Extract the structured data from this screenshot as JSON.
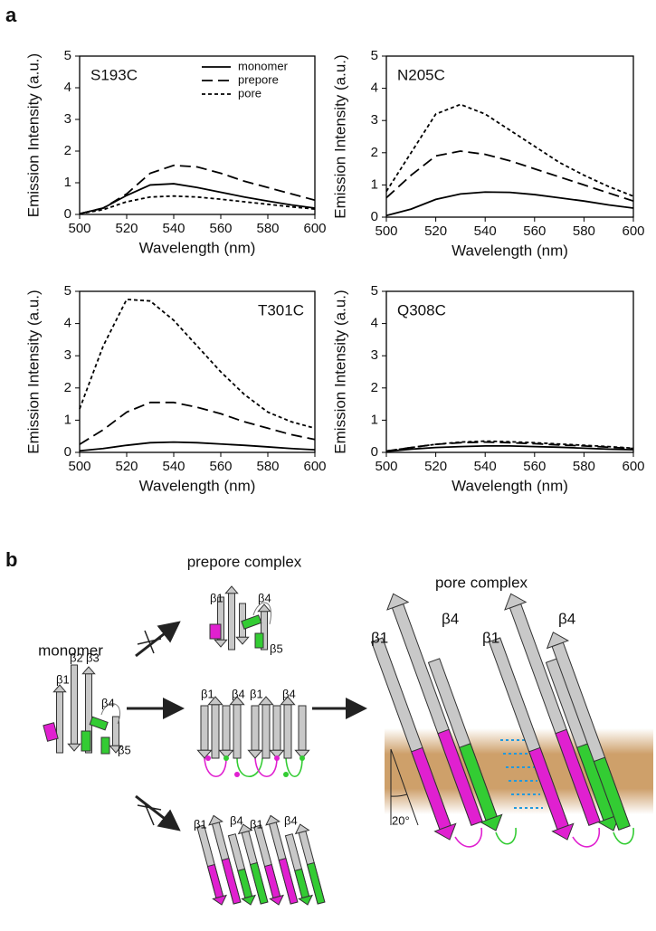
{
  "panel_a": {
    "label": "a"
  },
  "chart_data": [
    {
      "type": "line",
      "title": "S193C",
      "xlabel": "Wavelength (nm)",
      "ylabel": "Emission  Intensity (a.u.)",
      "x": [
        500,
        510,
        520,
        530,
        540,
        550,
        560,
        570,
        580,
        590,
        600
      ],
      "xlim": [
        500,
        600
      ],
      "xticks": [
        500,
        520,
        540,
        560,
        580,
        600
      ],
      "ylim": [
        0,
        5
      ],
      "yticks": [
        0,
        1,
        2,
        3,
        4,
        5
      ],
      "legend": "top-right",
      "series": [
        {
          "name": "monomer",
          "color": "#000000",
          "dash": "solid",
          "values": [
            0.02,
            0.2,
            0.6,
            0.93,
            0.97,
            0.85,
            0.7,
            0.55,
            0.42,
            0.3,
            0.2
          ]
        },
        {
          "name": "prepore",
          "color": "#000000",
          "dash": "long-dash",
          "values": [
            0.02,
            0.2,
            0.65,
            1.3,
            1.55,
            1.5,
            1.3,
            1.05,
            0.85,
            0.65,
            0.45
          ]
        },
        {
          "name": "pore",
          "color": "#000000",
          "dash": "short-dash",
          "values": [
            0.02,
            0.15,
            0.4,
            0.55,
            0.58,
            0.55,
            0.48,
            0.4,
            0.32,
            0.24,
            0.17
          ]
        }
      ]
    },
    {
      "type": "line",
      "title": "N205C",
      "xlabel": "Wavelength (nm)",
      "ylabel": "Emission  Intensity (a.u.)",
      "x": [
        500,
        510,
        520,
        530,
        540,
        550,
        560,
        570,
        580,
        590,
        600
      ],
      "xlim": [
        500,
        600
      ],
      "xticks": [
        500,
        520,
        540,
        560,
        580,
        600
      ],
      "ylim": [
        0,
        5
      ],
      "yticks": [
        0,
        1,
        2,
        3,
        4,
        5
      ],
      "series": [
        {
          "color": "#000000",
          "dash": "solid",
          "values": [
            0.05,
            0.25,
            0.55,
            0.72,
            0.78,
            0.77,
            0.7,
            0.6,
            0.5,
            0.38,
            0.28
          ]
        },
        {
          "color": "#000000",
          "dash": "long-dash",
          "values": [
            0.6,
            1.3,
            1.9,
            2.05,
            1.95,
            1.75,
            1.5,
            1.25,
            1.0,
            0.75,
            0.5
          ]
        },
        {
          "color": "#000000",
          "dash": "short-dash",
          "values": [
            0.8,
            2.0,
            3.2,
            3.5,
            3.2,
            2.7,
            2.2,
            1.7,
            1.3,
            0.95,
            0.65
          ]
        }
      ]
    },
    {
      "type": "line",
      "title": "T301C",
      "xlabel": "Wavelength (nm)",
      "ylabel": "Emission  Intensity (a.u.)",
      "x": [
        500,
        510,
        520,
        530,
        540,
        550,
        560,
        570,
        580,
        590,
        600
      ],
      "xlim": [
        500,
        600
      ],
      "xticks": [
        500,
        520,
        540,
        560,
        580,
        600
      ],
      "ylim": [
        0,
        5
      ],
      "yticks": [
        0,
        1,
        2,
        3,
        4,
        5
      ],
      "series": [
        {
          "color": "#000000",
          "dash": "solid",
          "values": [
            0.05,
            0.12,
            0.22,
            0.3,
            0.32,
            0.3,
            0.26,
            0.22,
            0.17,
            0.12,
            0.08
          ]
        },
        {
          "color": "#000000",
          "dash": "long-dash",
          "values": [
            0.25,
            0.7,
            1.25,
            1.55,
            1.55,
            1.4,
            1.2,
            0.95,
            0.75,
            0.55,
            0.4
          ]
        },
        {
          "color": "#000000",
          "dash": "short-dash",
          "values": [
            1.35,
            3.3,
            4.75,
            4.7,
            4.1,
            3.3,
            2.5,
            1.8,
            1.25,
            0.95,
            0.75
          ]
        }
      ]
    },
    {
      "type": "line",
      "title": "Q308C",
      "xlabel": "Wavelength (nm)",
      "ylabel": "Emission  Intensity (a.u.)",
      "x": [
        500,
        510,
        520,
        530,
        540,
        550,
        560,
        570,
        580,
        590,
        600
      ],
      "xlim": [
        500,
        600
      ],
      "xticks": [
        500,
        520,
        540,
        560,
        580,
        600
      ],
      "ylim": [
        0,
        5
      ],
      "yticks": [
        0,
        1,
        2,
        3,
        4,
        5
      ],
      "series": [
        {
          "color": "#000000",
          "dash": "solid",
          "values": [
            0.03,
            0.1,
            0.15,
            0.18,
            0.2,
            0.2,
            0.18,
            0.16,
            0.13,
            0.1,
            0.08
          ]
        },
        {
          "color": "#000000",
          "dash": "long-dash",
          "values": [
            0.04,
            0.15,
            0.25,
            0.3,
            0.32,
            0.3,
            0.27,
            0.23,
            0.2,
            0.16,
            0.12
          ]
        },
        {
          "color": "#000000",
          "dash": "short-dash",
          "values": [
            0.04,
            0.15,
            0.25,
            0.32,
            0.35,
            0.33,
            0.3,
            0.26,
            0.22,
            0.18,
            0.13
          ]
        }
      ]
    }
  ],
  "panel_b": {
    "label": "b",
    "monomer": {
      "title": "monomer",
      "strands": [
        "β1",
        "β2",
        "β3",
        "β4",
        "β5"
      ]
    },
    "prepore": {
      "title": "prepore complex",
      "top_strands": [
        "β1",
        "β4",
        "β5"
      ],
      "middle_strands": [
        "β1",
        "β4",
        "β1",
        "β4"
      ],
      "bottom_strands": [
        "β1",
        "β4",
        "β1",
        "β4"
      ]
    },
    "pore": {
      "title": "pore complex",
      "strands": [
        "β1",
        "β4",
        "β1",
        "β4"
      ],
      "angle_label": "20°"
    }
  }
}
